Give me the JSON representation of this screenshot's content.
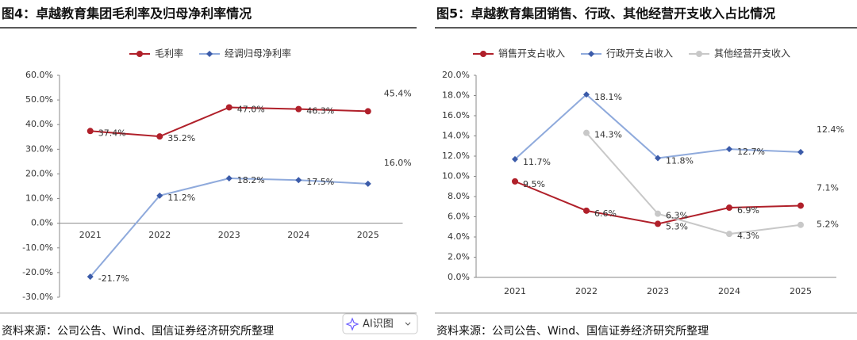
{
  "chart_data": [
    {
      "type": "line",
      "title": "图4：卓越教育集团毛利率及归母净利率情况",
      "categories": [
        "2021",
        "2022",
        "2023",
        "2024",
        "2025"
      ],
      "series": [
        {
          "name": "毛利率",
          "color": "#b0202a",
          "marker": "circle",
          "values": [
            37.4,
            35.2,
            47.0,
            46.3,
            45.4
          ],
          "value_labels": [
            "37.4%",
            "35.2%",
            "47.0%",
            "46.3%",
            "45.4%"
          ]
        },
        {
          "name": "经调归母净利率",
          "color": "#8faadc",
          "marker": "diamond",
          "values": [
            -21.7,
            11.2,
            18.2,
            17.5,
            16.0
          ],
          "value_labels": [
            "-21.7%",
            "11.2%",
            "18.2%",
            "17.5%",
            "16.0%"
          ]
        }
      ],
      "ylim": [
        -30,
        60
      ],
      "yticks": [
        {
          "value": -30,
          "label": "-30.0%"
        },
        {
          "value": -20,
          "label": "-20.0%"
        },
        {
          "value": -10,
          "label": "-10.0%"
        },
        {
          "value": 0,
          "label": "0.0%"
        },
        {
          "value": 10,
          "label": "10.0%"
        },
        {
          "value": 20,
          "label": "20.0%"
        },
        {
          "value": 30,
          "label": "30.0%"
        },
        {
          "value": 40,
          "label": "40.0%"
        },
        {
          "value": 50,
          "label": "50.0%"
        },
        {
          "value": 60,
          "label": "60.0%"
        }
      ],
      "grid": false,
      "source": "资料来源：公司公告、Wind、国信证券经济研究所整理"
    },
    {
      "type": "line",
      "title": "图5：卓越教育集团销售、行政、其他经营开支收入占比情况",
      "categories": [
        "2021",
        "2022",
        "2023",
        "2024",
        "2025"
      ],
      "series": [
        {
          "name": "销售开支占收入",
          "color": "#b0202a",
          "marker": "circle",
          "values": [
            9.5,
            6.6,
            5.3,
            6.9,
            7.1
          ],
          "value_labels": [
            "9.5%",
            "6.6%",
            "5.3%",
            "6.9%",
            "7.1%"
          ]
        },
        {
          "name": "行政开支占收入",
          "color": "#8faadc",
          "marker": "diamond",
          "values": [
            11.7,
            18.1,
            11.8,
            12.7,
            12.4
          ],
          "value_labels": [
            "11.7%",
            "18.1%",
            "11.8%",
            "12.7%",
            "12.4%"
          ]
        },
        {
          "name": "其他经营开支收入",
          "color": "#c8c8c8",
          "marker": "circle",
          "values": [
            null,
            14.3,
            6.3,
            4.3,
            5.2
          ],
          "value_labels": [
            null,
            "14.3%",
            "6.3%",
            "4.3%",
            "5.2%"
          ]
        }
      ],
      "ylim": [
        0,
        20
      ],
      "yticks": [
        {
          "value": 0,
          "label": "0.0%"
        },
        {
          "value": 2,
          "label": "2.0%"
        },
        {
          "value": 4,
          "label": "4.0%"
        },
        {
          "value": 6,
          "label": "6.0%"
        },
        {
          "value": 8,
          "label": "8.0%"
        },
        {
          "value": 10,
          "label": "10.0%"
        },
        {
          "value": 12,
          "label": "12.0%"
        },
        {
          "value": 14,
          "label": "14.0%"
        },
        {
          "value": 16,
          "label": "16.0%"
        },
        {
          "value": 18,
          "label": "18.0%"
        },
        {
          "value": 20,
          "label": "20.0%"
        }
      ],
      "grid": false,
      "source": "资料来源：公司公告、Wind、国信证券经济研究所整理"
    }
  ],
  "button": {
    "label": "AI识图"
  }
}
